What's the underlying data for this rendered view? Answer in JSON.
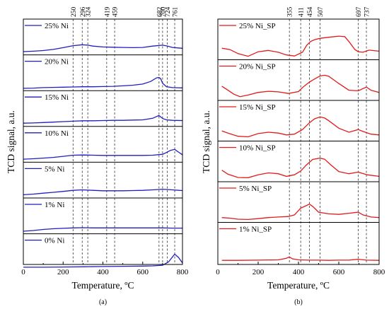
{
  "chart_data": [
    {
      "type": "line",
      "panel_label": "(a)",
      "xlabel": "Temperature, ºC",
      "ylabel": "TCD signal, a.u.",
      "xlim": [
        0,
        800
      ],
      "xticks": [
        0,
        200,
        400,
        600,
        800
      ],
      "line_color": "#1f1fbf",
      "reference_temperatures": [
        250,
        296,
        324,
        419,
        459,
        682,
        700,
        724,
        761
      ],
      "series": [
        {
          "name": "25% Ni",
          "x": [
            0,
            50,
            100,
            150,
            200,
            250,
            296,
            324,
            350,
            400,
            450,
            500,
            550,
            600,
            650,
            700,
            720,
            750,
            800
          ],
          "values": [
            0.05,
            0.07,
            0.1,
            0.15,
            0.23,
            0.32,
            0.36,
            0.34,
            0.3,
            0.26,
            0.25,
            0.24,
            0.23,
            0.24,
            0.3,
            0.34,
            0.31,
            0.24,
            0.2
          ]
        },
        {
          "name": "20% Ni",
          "x": [
            0,
            50,
            100,
            150,
            200,
            250,
            300,
            350,
            400,
            450,
            500,
            550,
            600,
            640,
            670,
            682,
            690,
            700,
            720,
            750,
            800
          ],
          "values": [
            0.01,
            0.02,
            0.04,
            0.05,
            0.06,
            0.07,
            0.08,
            0.08,
            0.09,
            0.1,
            0.12,
            0.15,
            0.2,
            0.32,
            0.48,
            0.5,
            0.45,
            0.24,
            0.08,
            0.04,
            0.03
          ]
        },
        {
          "name": "15% Ni",
          "x": [
            0,
            50,
            100,
            150,
            200,
            250,
            300,
            350,
            400,
            450,
            500,
            550,
            600,
            650,
            682,
            700,
            720,
            750,
            800
          ],
          "values": [
            0.05,
            0.06,
            0.08,
            0.1,
            0.12,
            0.14,
            0.16,
            0.16,
            0.17,
            0.18,
            0.18,
            0.19,
            0.2,
            0.27,
            0.4,
            0.26,
            0.2,
            0.18,
            0.17
          ]
        },
        {
          "name": "10% Ni",
          "x": [
            0,
            50,
            100,
            150,
            200,
            250,
            300,
            350,
            400,
            450,
            500,
            550,
            600,
            650,
            700,
            724,
            740,
            761,
            780,
            800
          ],
          "values": [
            0.04,
            0.06,
            0.09,
            0.12,
            0.17,
            0.22,
            0.23,
            0.22,
            0.21,
            0.21,
            0.21,
            0.21,
            0.21,
            0.22,
            0.26,
            0.36,
            0.44,
            0.48,
            0.36,
            0.24
          ]
        },
        {
          "name": "5% Ni",
          "x": [
            0,
            50,
            100,
            150,
            200,
            250,
            296,
            350,
            400,
            450,
            500,
            550,
            600,
            650,
            700,
            750,
            800
          ],
          "values": [
            0.05,
            0.08,
            0.12,
            0.16,
            0.2,
            0.25,
            0.27,
            0.25,
            0.23,
            0.23,
            0.23,
            0.24,
            0.25,
            0.27,
            0.3,
            0.27,
            0.24
          ]
        },
        {
          "name": "1% Ni",
          "x": [
            0,
            50,
            100,
            150,
            200,
            250,
            300,
            350,
            400,
            450,
            500,
            550,
            600,
            650,
            700,
            750,
            800
          ],
          "values": [
            0.02,
            0.05,
            0.1,
            0.13,
            0.15,
            0.17,
            0.18,
            0.17,
            0.17,
            0.17,
            0.17,
            0.17,
            0.17,
            0.17,
            0.17,
            0.16,
            0.16
          ]
        },
        {
          "name": "0% Ni",
          "x": [
            0,
            100,
            200,
            300,
            400,
            500,
            600,
            650,
            700,
            730,
            761,
            780,
            800
          ],
          "values": [
            0.01,
            0.01,
            0.02,
            0.03,
            0.04,
            0.05,
            0.06,
            0.07,
            0.1,
            0.25,
            0.6,
            0.45,
            0.2
          ]
        }
      ]
    },
    {
      "type": "line",
      "panel_label": "(b)",
      "xlabel": "Temperature, ºC",
      "ylabel": "TCD signal, a.u.",
      "xlim": [
        0,
        800
      ],
      "xticks": [
        0,
        200,
        400,
        600,
        800
      ],
      "line_color": "#e01b1b",
      "reference_temperatures": [
        355,
        411,
        454,
        507,
        697,
        737
      ],
      "series": [
        {
          "name": "25% Ni_SP",
          "x": [
            20,
            60,
            100,
            150,
            200,
            250,
            300,
            340,
            380,
            420,
            440,
            460,
            480,
            507,
            550,
            600,
            630,
            650,
            680,
            697,
            720,
            750,
            800
          ],
          "values": [
            0.35,
            0.3,
            0.15,
            0.05,
            0.22,
            0.27,
            0.2,
            0.1,
            0.06,
            0.2,
            0.45,
            0.6,
            0.67,
            0.72,
            0.76,
            0.8,
            0.78,
            0.6,
            0.3,
            0.22,
            0.2,
            0.28,
            0.24
          ]
        },
        {
          "name": "20% Ni_SP",
          "x": [
            20,
            50,
            80,
            110,
            150,
            200,
            250,
            300,
            350,
            400,
            420,
            440,
            454,
            480,
            507,
            530,
            550,
            600,
            650,
            697,
            720,
            737,
            760,
            800
          ],
          "values": [
            0.45,
            0.3,
            0.15,
            0.06,
            0.12,
            0.22,
            0.26,
            0.24,
            0.18,
            0.25,
            0.4,
            0.52,
            0.6,
            0.72,
            0.83,
            0.86,
            0.82,
            0.55,
            0.3,
            0.28,
            0.36,
            0.42,
            0.3,
            0.22
          ]
        },
        {
          "name": "15% Ni_SP",
          "x": [
            20,
            50,
            100,
            150,
            200,
            250,
            300,
            340,
            380,
            420,
            454,
            480,
            507,
            530,
            550,
            600,
            650,
            697,
            720,
            760,
            800
          ],
          "values": [
            0.3,
            0.22,
            0.1,
            0.08,
            0.2,
            0.25,
            0.22,
            0.15,
            0.18,
            0.35,
            0.6,
            0.75,
            0.82,
            0.78,
            0.68,
            0.4,
            0.25,
            0.35,
            0.28,
            0.18,
            0.15
          ]
        },
        {
          "name": "10% Ni_SP",
          "x": [
            20,
            50,
            100,
            150,
            200,
            250,
            300,
            340,
            380,
            411,
            440,
            470,
            507,
            530,
            560,
            600,
            650,
            697,
            740,
            800
          ],
          "values": [
            0.35,
            0.2,
            0.08,
            0.07,
            0.18,
            0.25,
            0.22,
            0.12,
            0.18,
            0.32,
            0.55,
            0.75,
            0.8,
            0.76,
            0.55,
            0.3,
            0.22,
            0.28,
            0.18,
            0.12
          ]
        },
        {
          "name": "5% Ni_SP",
          "x": [
            20,
            60,
            100,
            150,
            200,
            250,
            300,
            350,
            380,
            411,
            440,
            454,
            470,
            500,
            550,
            600,
            650,
            697,
            720,
            760,
            800
          ],
          "values": [
            0.1,
            0.08,
            0.04,
            0.03,
            0.06,
            0.1,
            0.12,
            0.14,
            0.2,
            0.45,
            0.55,
            0.6,
            0.52,
            0.3,
            0.24,
            0.22,
            0.26,
            0.3,
            0.2,
            0.12,
            0.1
          ]
        },
        {
          "name": "1% Ni_SP",
          "x": [
            20,
            100,
            200,
            300,
            340,
            355,
            370,
            400,
            450,
            500,
            550,
            600,
            650,
            697,
            737,
            800
          ],
          "values": [
            0.02,
            0.02,
            0.03,
            0.04,
            0.1,
            0.15,
            0.08,
            0.04,
            0.03,
            0.03,
            0.02,
            0.03,
            0.03,
            0.06,
            0.03,
            0.02
          ]
        }
      ]
    }
  ]
}
